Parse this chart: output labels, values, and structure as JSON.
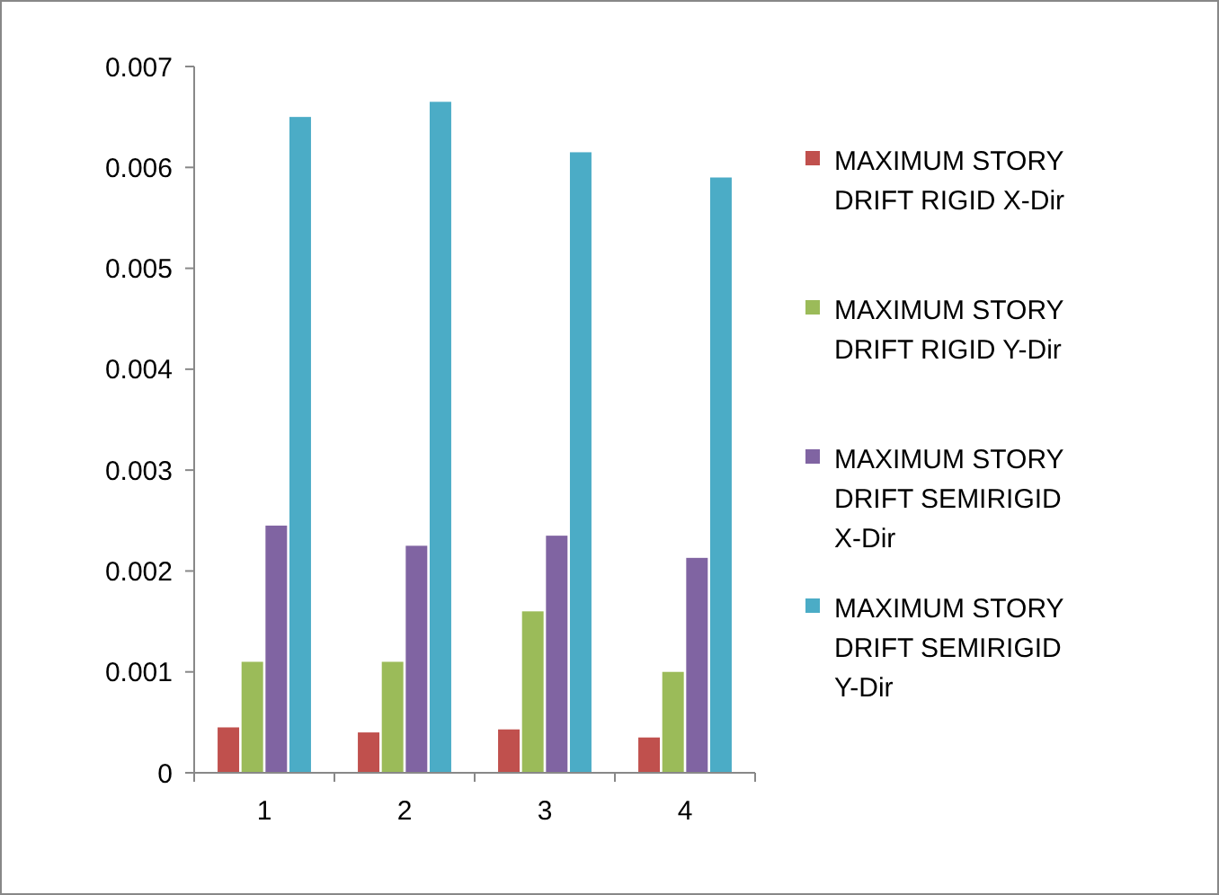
{
  "chart_data": {
    "type": "bar",
    "categories": [
      "1",
      "2",
      "3",
      "4"
    ],
    "series": [
      {
        "name": "MAXIMUM STORY DRIFT RIGID X-Dir",
        "color": "#c0504d",
        "values": [
          0.00045,
          0.0004,
          0.00043,
          0.00035
        ]
      },
      {
        "name": "MAXIMUM STORY DRIFT RIGID Y-Dir",
        "color": "#9bbb59",
        "values": [
          0.0011,
          0.0011,
          0.0016,
          0.001
        ]
      },
      {
        "name": "MAXIMUM STORY DRIFT SEMIRIGID X-Dir",
        "color": "#8064a2",
        "values": [
          0.00245,
          0.00225,
          0.00235,
          0.00213
        ]
      },
      {
        "name": "MAXIMUM STORY DRIFT SEMIRIGID Y-Dir",
        "color": "#4bacc6",
        "values": [
          0.0065,
          0.00665,
          0.00615,
          0.0059
        ]
      }
    ],
    "ylim": [
      0,
      0.007
    ],
    "yticks": [
      0,
      0.001,
      0.002,
      0.003,
      0.004,
      0.005,
      0.006,
      0.007
    ],
    "grid": false,
    "legend": "right"
  }
}
